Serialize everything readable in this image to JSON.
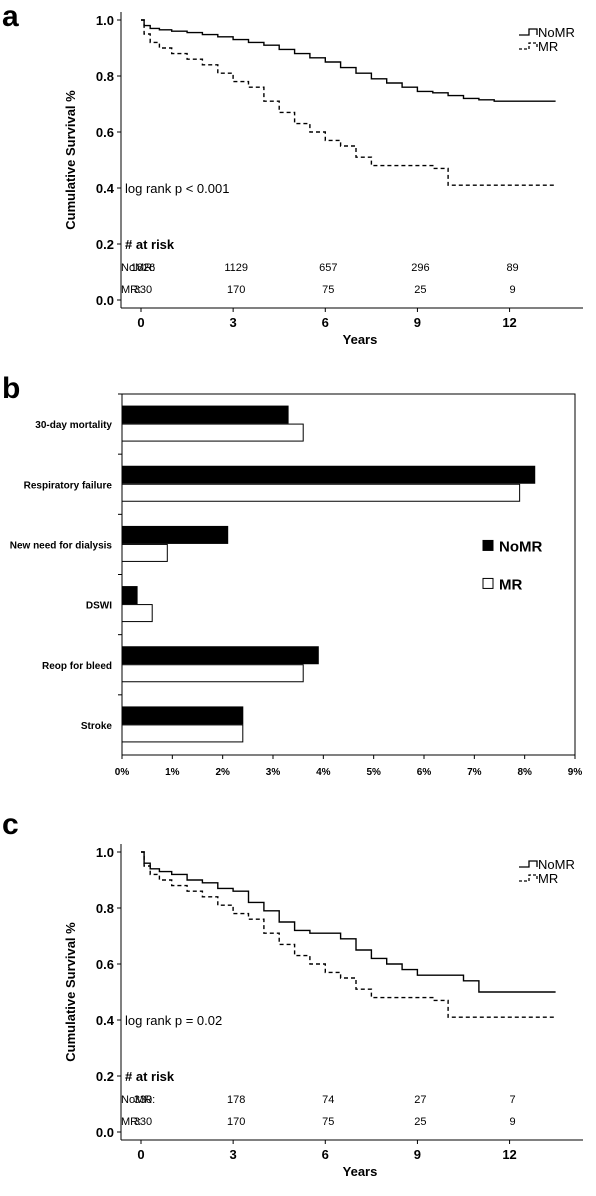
{
  "panels": {
    "a": "a",
    "b": "b",
    "c": "c"
  },
  "chart_data": [
    {
      "type": "line",
      "chart": "survival",
      "ylabel": "Cumulative Survival %",
      "xlabel": "Years",
      "xlim": [
        0,
        14
      ],
      "ylim": [
        0,
        1
      ],
      "xticks": [
        "0",
        "3",
        "6",
        "9",
        "12"
      ],
      "xtick_values": [
        0,
        3,
        6,
        9,
        12
      ],
      "yticks": [
        "0.0",
        "0.2",
        "0.4",
        "0.6",
        "0.8",
        "1.0"
      ],
      "ytick_values": [
        0,
        0.2,
        0.4,
        0.6,
        0.8,
        1.0
      ],
      "annotation": "log rank p < 0.001",
      "at_risk": {
        "title": "# at risk",
        "rows": [
          {
            "label": "NoMR:",
            "values": [
              "1826",
              "1129",
              "657",
              "296",
              "89"
            ]
          },
          {
            "label": "MR:",
            "values": [
              "330",
              "170",
              "75",
              "25",
              "9"
            ]
          }
        ]
      },
      "legend_position": "top-right",
      "series": [
        {
          "name": "NoMR",
          "style": "solid",
          "x": [
            0,
            0.1,
            0.3,
            0.6,
            1,
            1.5,
            2,
            2.5,
            3,
            3.5,
            4,
            4.5,
            5,
            5.5,
            6,
            6.5,
            7,
            7.5,
            8,
            8.5,
            9,
            9.5,
            10,
            10.5,
            11,
            11.5,
            12,
            13.5
          ],
          "y": [
            1.0,
            0.98,
            0.97,
            0.965,
            0.96,
            0.955,
            0.948,
            0.94,
            0.93,
            0.92,
            0.91,
            0.895,
            0.88,
            0.865,
            0.85,
            0.83,
            0.81,
            0.79,
            0.775,
            0.76,
            0.745,
            0.74,
            0.73,
            0.72,
            0.715,
            0.71,
            0.71,
            0.71
          ]
        },
        {
          "name": "MR",
          "style": "dashed",
          "x": [
            0,
            0.1,
            0.3,
            0.6,
            1,
            1.5,
            2,
            2.5,
            3,
            3.5,
            4,
            4.5,
            5,
            5.5,
            6,
            6.5,
            7,
            7.5,
            8,
            8.5,
            9,
            9.5,
            10,
            11,
            12,
            13.5
          ],
          "y": [
            1.0,
            0.95,
            0.92,
            0.9,
            0.88,
            0.86,
            0.84,
            0.81,
            0.78,
            0.76,
            0.71,
            0.67,
            0.63,
            0.6,
            0.57,
            0.55,
            0.51,
            0.48,
            0.48,
            0.48,
            0.48,
            0.47,
            0.41,
            0.41,
            0.41,
            0.41
          ]
        }
      ]
    },
    {
      "type": "bar",
      "chart": "complications",
      "orientation": "horizontal",
      "categories": [
        "30-day mortality",
        "Respiratory failure",
        "New need for dialysis",
        "DSWI",
        "Reop for bleed",
        "Stroke"
      ],
      "xticks": [
        "0%",
        "1%",
        "2%",
        "3%",
        "4%",
        "5%",
        "6%",
        "7%",
        "8%",
        "9%"
      ],
      "xlim": [
        0,
        9
      ],
      "legend_position": "right",
      "series": [
        {
          "name": "NoMR",
          "color": "#000000",
          "values": [
            3.3,
            8.2,
            2.1,
            0.3,
            3.9,
            2.4
          ]
        },
        {
          "name": "MR",
          "color": "#ffffff",
          "values": [
            3.6,
            7.9,
            0.9,
            0.6,
            3.6,
            2.4
          ]
        }
      ]
    },
    {
      "type": "line",
      "chart": "survival",
      "ylabel": "Cumulative Survival %",
      "xlabel": "Years",
      "xlim": [
        0,
        14
      ],
      "ylim": [
        0,
        1
      ],
      "xticks": [
        "0",
        "3",
        "6",
        "9",
        "12"
      ],
      "xtick_values": [
        0,
        3,
        6,
        9,
        12
      ],
      "yticks": [
        "0.0",
        "0.2",
        "0.4",
        "0.6",
        "0.8",
        "1.0"
      ],
      "ytick_values": [
        0,
        0.2,
        0.4,
        0.6,
        0.8,
        1.0
      ],
      "annotation": "log rank p = 0.02",
      "at_risk": {
        "title": "# at risk",
        "rows": [
          {
            "label": "NoMR:",
            "values": [
              "330",
              "178",
              "74",
              "27",
              "7"
            ]
          },
          {
            "label": "MR:",
            "values": [
              "330",
              "170",
              "75",
              "25",
              "9"
            ]
          }
        ]
      },
      "legend_position": "top-right",
      "series": [
        {
          "name": "NoMR",
          "style": "solid",
          "x": [
            0,
            0.1,
            0.3,
            0.6,
            1,
            1.5,
            2,
            2.5,
            3,
            3.5,
            4,
            4.5,
            5,
            5.5,
            6,
            6.5,
            7,
            7.5,
            8,
            8.5,
            9,
            9.5,
            10,
            10.5,
            11,
            12,
            13.5
          ],
          "y": [
            1.0,
            0.96,
            0.94,
            0.93,
            0.92,
            0.9,
            0.89,
            0.87,
            0.86,
            0.82,
            0.79,
            0.75,
            0.72,
            0.71,
            0.71,
            0.69,
            0.65,
            0.62,
            0.6,
            0.58,
            0.56,
            0.56,
            0.56,
            0.54,
            0.5,
            0.5,
            0.5
          ]
        },
        {
          "name": "MR",
          "style": "dashed",
          "x": [
            0,
            0.1,
            0.3,
            0.6,
            1,
            1.5,
            2,
            2.5,
            3,
            3.5,
            4,
            4.5,
            5,
            5.5,
            6,
            6.5,
            7,
            7.5,
            8,
            8.5,
            9,
            9.5,
            10,
            11,
            12,
            13.5
          ],
          "y": [
            1.0,
            0.95,
            0.92,
            0.9,
            0.88,
            0.86,
            0.84,
            0.81,
            0.78,
            0.76,
            0.71,
            0.67,
            0.63,
            0.6,
            0.57,
            0.55,
            0.51,
            0.48,
            0.48,
            0.48,
            0.48,
            0.47,
            0.41,
            0.41,
            0.41,
            0.41
          ]
        }
      ]
    }
  ]
}
